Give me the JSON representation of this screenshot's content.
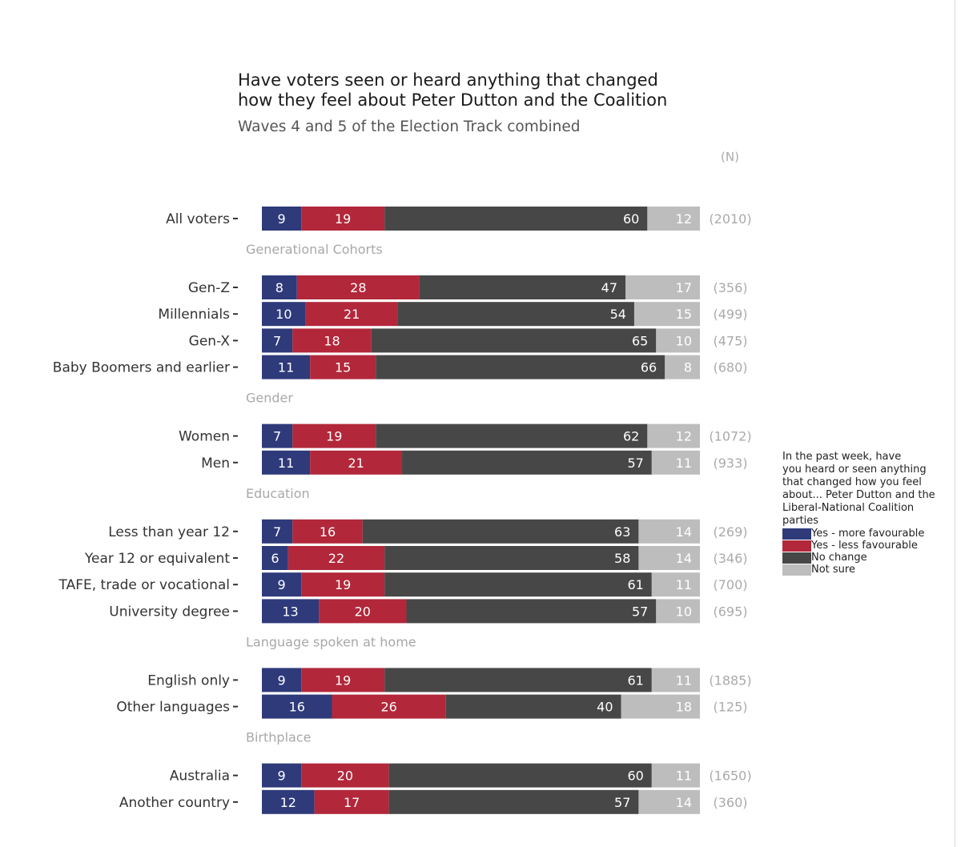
{
  "chart_data": {
    "type": "bar",
    "orientation": "horizontal",
    "stacked": true,
    "title_lines": [
      "Have voters seen or heard anything that changed",
      "how they feel about Peter Dutton and the Coalition"
    ],
    "subtitle": "Waves 4 and 5 of the Election Track combined",
    "n_header": "(N)",
    "xlim": [
      0,
      100
    ],
    "series": [
      {
        "name": "Yes - more favourable",
        "color": "#2e3a7a"
      },
      {
        "name": "Yes - less favourable",
        "color": "#b2273a"
      },
      {
        "name": "No change",
        "color": "#474747"
      },
      {
        "name": "Not sure",
        "color": "#bdbdbd"
      }
    ],
    "groups": [
      {
        "label": "",
        "rows": [
          {
            "label": "All voters",
            "values": [
              9,
              19,
              60,
              12
            ],
            "n": "(2010)"
          }
        ]
      },
      {
        "label": "Generational Cohorts",
        "rows": [
          {
            "label": "Gen-Z",
            "values": [
              8,
              28,
              47,
              17
            ],
            "n": "(356)"
          },
          {
            "label": "Millennials",
            "values": [
              10,
              21,
              54,
              15
            ],
            "n": "(499)"
          },
          {
            "label": "Gen-X",
            "values": [
              7,
              18,
              65,
              10
            ],
            "n": "(475)"
          },
          {
            "label": "Baby Boomers and earlier",
            "values": [
              11,
              15,
              66,
              8
            ],
            "n": "(680)"
          }
        ]
      },
      {
        "label": "Gender",
        "rows": [
          {
            "label": "Women",
            "values": [
              7,
              19,
              62,
              12
            ],
            "n": "(1072)"
          },
          {
            "label": "Men",
            "values": [
              11,
              21,
              57,
              11
            ],
            "n": "(933)"
          }
        ]
      },
      {
        "label": "Education",
        "rows": [
          {
            "label": "Less than year 12",
            "values": [
              7,
              16,
              63,
              14
            ],
            "n": "(269)"
          },
          {
            "label": "Year 12 or equivalent",
            "values": [
              6,
              22,
              58,
              14
            ],
            "n": "(346)"
          },
          {
            "label": "TAFE, trade or vocational",
            "values": [
              9,
              19,
              61,
              11
            ],
            "n": "(700)"
          },
          {
            "label": "University degree",
            "values": [
              13,
              20,
              57,
              10
            ],
            "n": "(695)"
          }
        ]
      },
      {
        "label": "Language spoken at home",
        "rows": [
          {
            "label": "English only",
            "values": [
              9,
              19,
              61,
              11
            ],
            "n": "(1885)"
          },
          {
            "label": "Other languages",
            "values": [
              16,
              26,
              40,
              18
            ],
            "n": "(125)"
          }
        ]
      },
      {
        "label": "Birthplace",
        "rows": [
          {
            "label": "Australia",
            "values": [
              9,
              20,
              60,
              11
            ],
            "n": "(1650)"
          },
          {
            "label": "Another country",
            "values": [
              12,
              17,
              57,
              14
            ],
            "n": "(360)"
          }
        ]
      }
    ],
    "legend": {
      "title_lines": [
        "In the past week, have",
        "you heard or seen anything",
        "that changed how you feel",
        "about... Peter Dutton and the",
        "Liberal-National Coalition",
        "parties"
      ],
      "position": "right"
    }
  }
}
